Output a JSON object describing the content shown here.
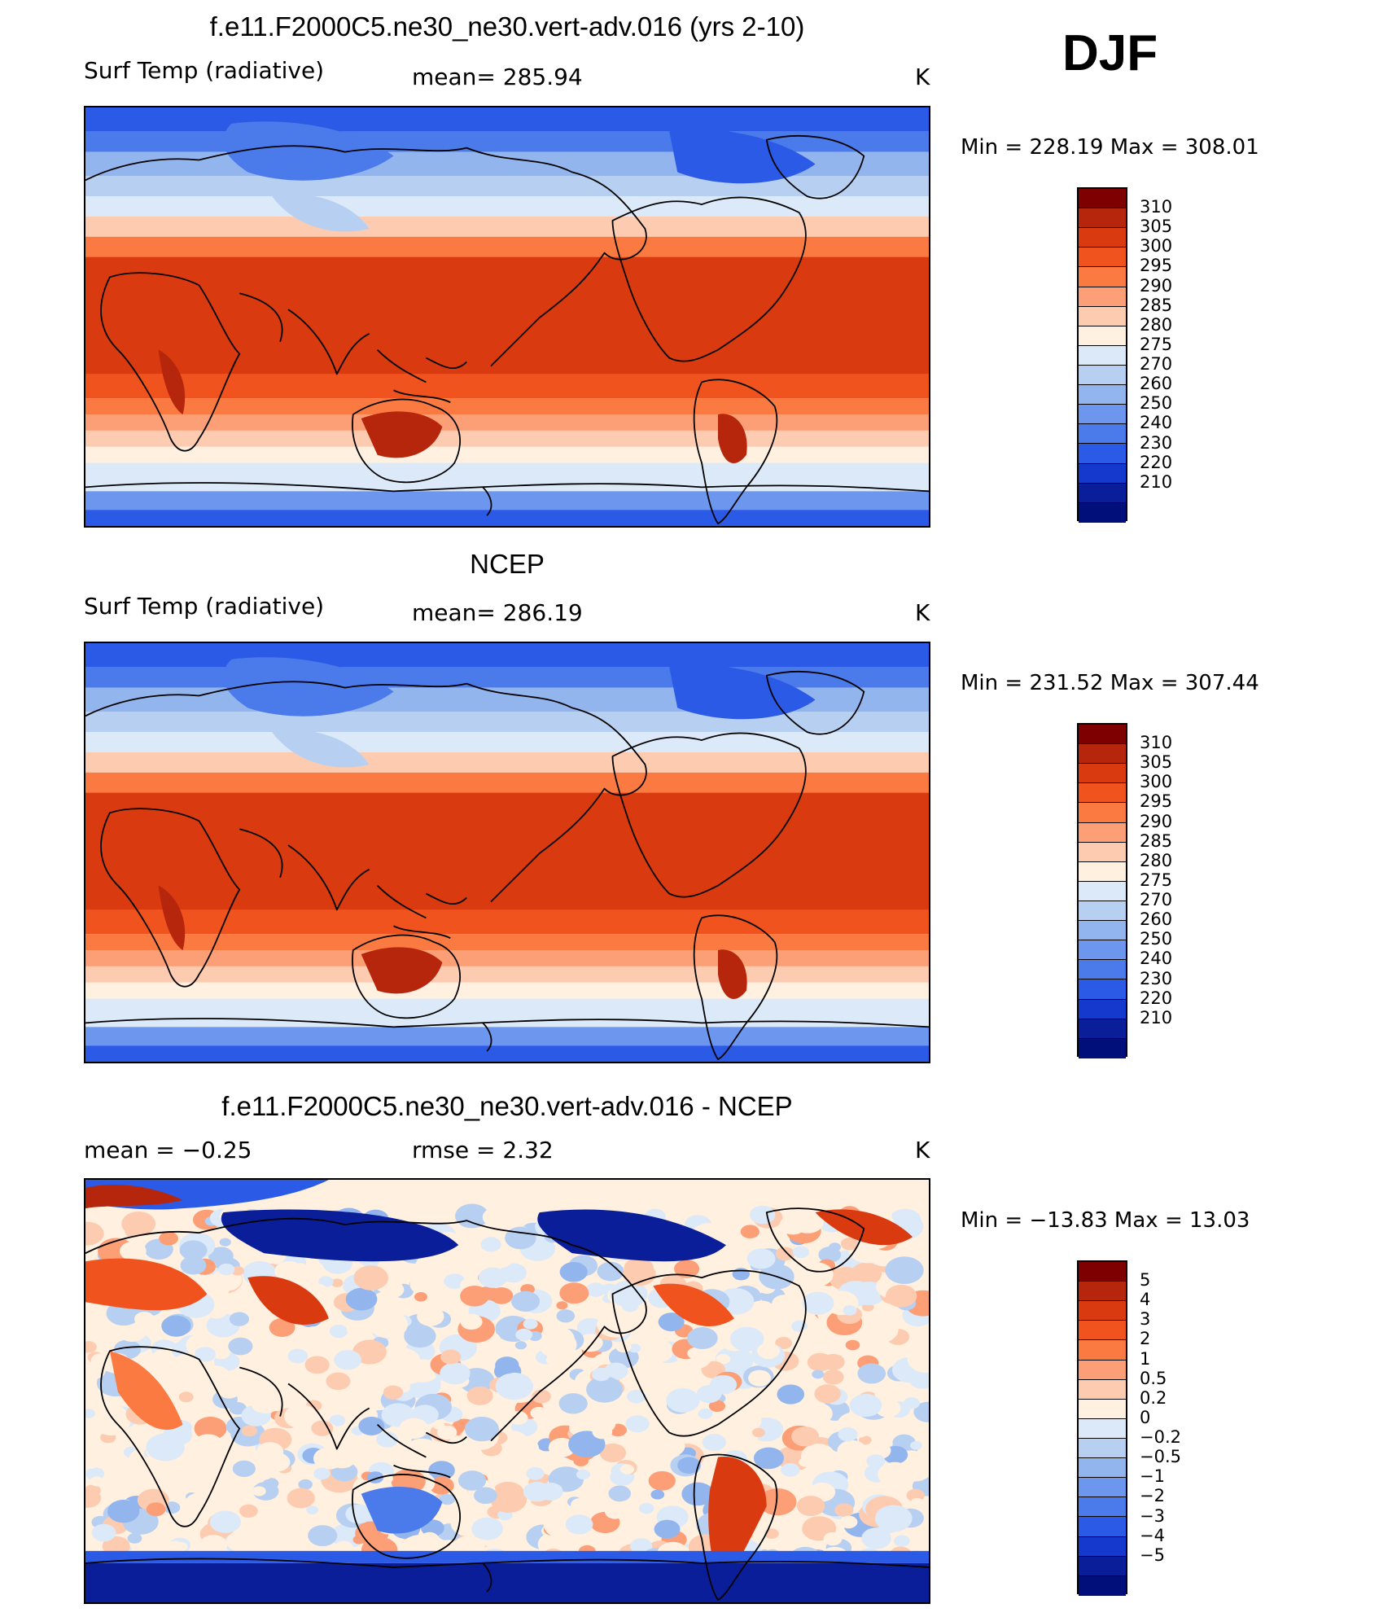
{
  "figure": {
    "season": "DJF"
  },
  "panels": [
    {
      "id": "model",
      "title": "f.e11.F2000C5.ne30_ne30.vert-adv.016 (yrs 2-10)",
      "left_label": "Surf Temp (radiative)",
      "center_label": "mean=  285.94",
      "units": "K",
      "minmax": "Min  =  228.19  Max  =  308.01",
      "field": "temperature",
      "colorbar": {
        "colors": [
          "#7f0000",
          "#b5260c",
          "#d93a10",
          "#f0531d",
          "#fb7a42",
          "#fc9f77",
          "#fdcbb0",
          "#fff0e0",
          "#dbe9f8",
          "#b7d0f2",
          "#93b5ee",
          "#6d97ee",
          "#4b7aea",
          "#2b5be6",
          "#1439cc",
          "#0a1e99",
          "#000f7a"
        ],
        "labels": [
          "310",
          "305",
          "300",
          "295",
          "290",
          "285",
          "280",
          "275",
          "270",
          "260",
          "250",
          "240",
          "230",
          "220",
          "210"
        ]
      }
    },
    {
      "id": "obs",
      "title": "NCEP",
      "left_label": "Surf Temp (radiative)",
      "center_label": "mean=  286.19",
      "units": "K",
      "minmax": "Min  =  231.52  Max  =  307.44",
      "field": "temperature",
      "colorbar": {
        "colors": [
          "#7f0000",
          "#b5260c",
          "#d93a10",
          "#f0531d",
          "#fb7a42",
          "#fc9f77",
          "#fdcbb0",
          "#fff0e0",
          "#dbe9f8",
          "#b7d0f2",
          "#93b5ee",
          "#6d97ee",
          "#4b7aea",
          "#2b5be6",
          "#1439cc",
          "#0a1e99",
          "#000f7a"
        ],
        "labels": [
          "310",
          "305",
          "300",
          "295",
          "290",
          "285",
          "280",
          "275",
          "270",
          "260",
          "250",
          "240",
          "230",
          "220",
          "210"
        ]
      }
    },
    {
      "id": "diff",
      "title": "f.e11.F2000C5.ne30_ne30.vert-adv.016 - NCEP",
      "left_label": "mean =    −0.25",
      "center_label": "rmse =     2.32",
      "units": "K",
      "minmax": "Min  =  −13.83  Max  =    13.03",
      "field": "difference",
      "colorbar": {
        "colors": [
          "#7f0000",
          "#b5260c",
          "#d93a10",
          "#f0531d",
          "#fb7a42",
          "#fc9f77",
          "#fdcbb0",
          "#fff0e0",
          "#dbe9f8",
          "#b7d0f2",
          "#93b5ee",
          "#6d97ee",
          "#4b7aea",
          "#2b5be6",
          "#1439cc",
          "#0a1e99",
          "#000f7a"
        ],
        "labels": [
          "5",
          "4",
          "3",
          "2",
          "1",
          "0.5",
          "0.2",
          "0",
          "−0.2",
          "−0.5",
          "−1",
          "−2",
          "−3",
          "−4",
          "−5"
        ]
      }
    }
  ]
}
